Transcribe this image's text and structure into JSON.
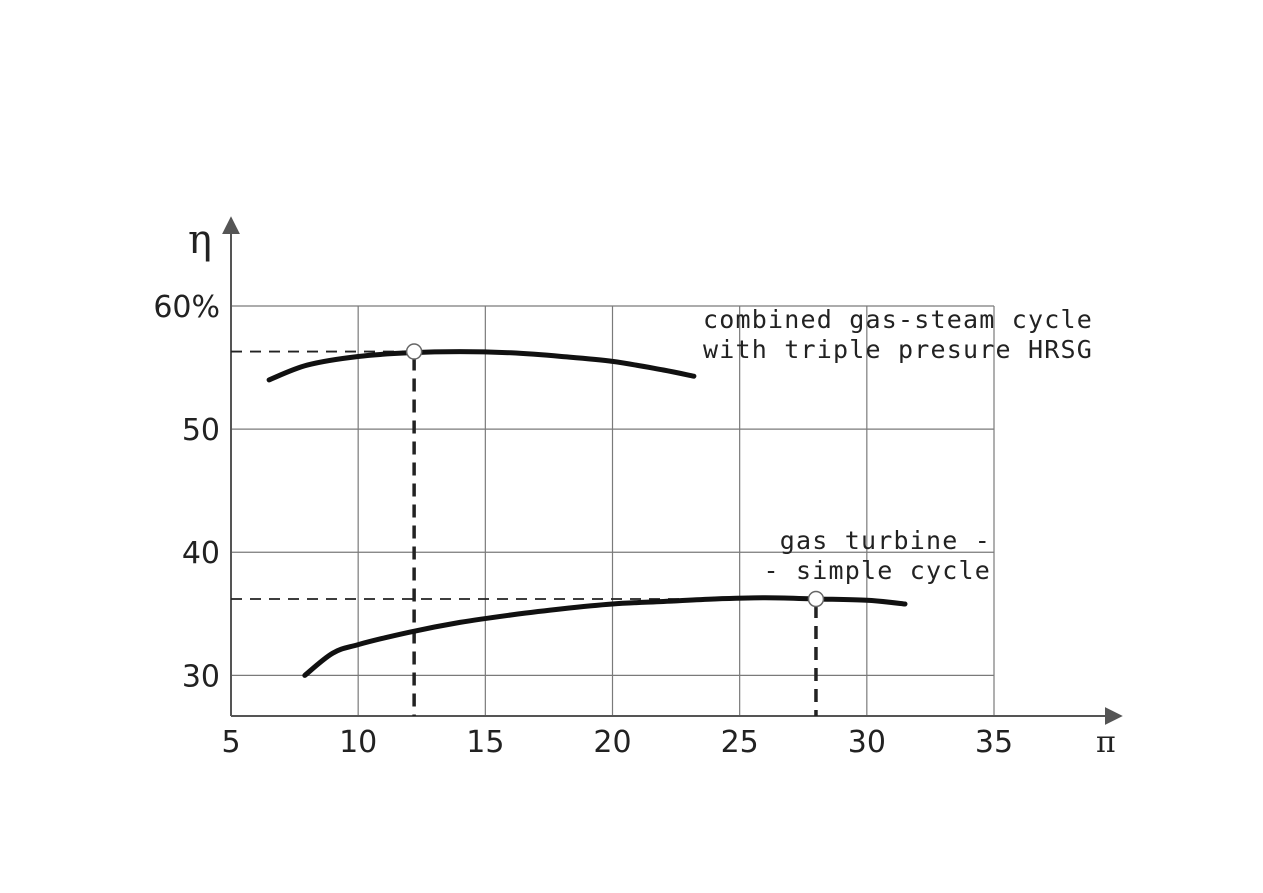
{
  "chart_data": {
    "type": "line",
    "xlabel": "π",
    "ylabel": "η",
    "xlim": [
      5,
      35
    ],
    "ylim": [
      26.7,
      60
    ],
    "x_ticks": [
      5,
      10,
      15,
      20,
      25,
      30,
      35
    ],
    "x_tick_labels": [
      "5",
      "10",
      "15",
      "20",
      "25",
      "30",
      "35"
    ],
    "y_ticks": [
      30,
      40,
      50,
      60
    ],
    "y_tick_labels": [
      "30",
      "40",
      "50",
      "60%"
    ],
    "grid": true,
    "series": [
      {
        "annotation_lines": [
          "combined gas-steam cycle",
          "with triple presure HRSG"
        ],
        "points": [
          [
            6.5,
            54.0
          ],
          [
            8,
            55.2
          ],
          [
            10,
            55.9
          ],
          [
            12,
            56.2
          ],
          [
            14,
            56.3
          ],
          [
            16,
            56.2
          ],
          [
            18,
            55.9
          ],
          [
            20,
            55.5
          ],
          [
            22,
            54.8
          ],
          [
            23.2,
            54.3
          ]
        ],
        "optimum": [
          12.2,
          56.3
        ]
      },
      {
        "annotation_lines": [
          "gas turbine -",
          "- simple cycle"
        ],
        "points": [
          [
            7.9,
            30.0
          ],
          [
            9,
            31.8
          ],
          [
            10,
            32.5
          ],
          [
            12,
            33.5
          ],
          [
            14,
            34.3
          ],
          [
            16,
            34.9
          ],
          [
            18,
            35.4
          ],
          [
            20,
            35.8
          ],
          [
            22,
            36.0
          ],
          [
            24,
            36.2
          ],
          [
            26,
            36.3
          ],
          [
            28,
            36.2
          ],
          [
            30,
            36.1
          ],
          [
            31.5,
            35.8
          ]
        ],
        "optimum": [
          28.0,
          36.2
        ]
      }
    ]
  }
}
